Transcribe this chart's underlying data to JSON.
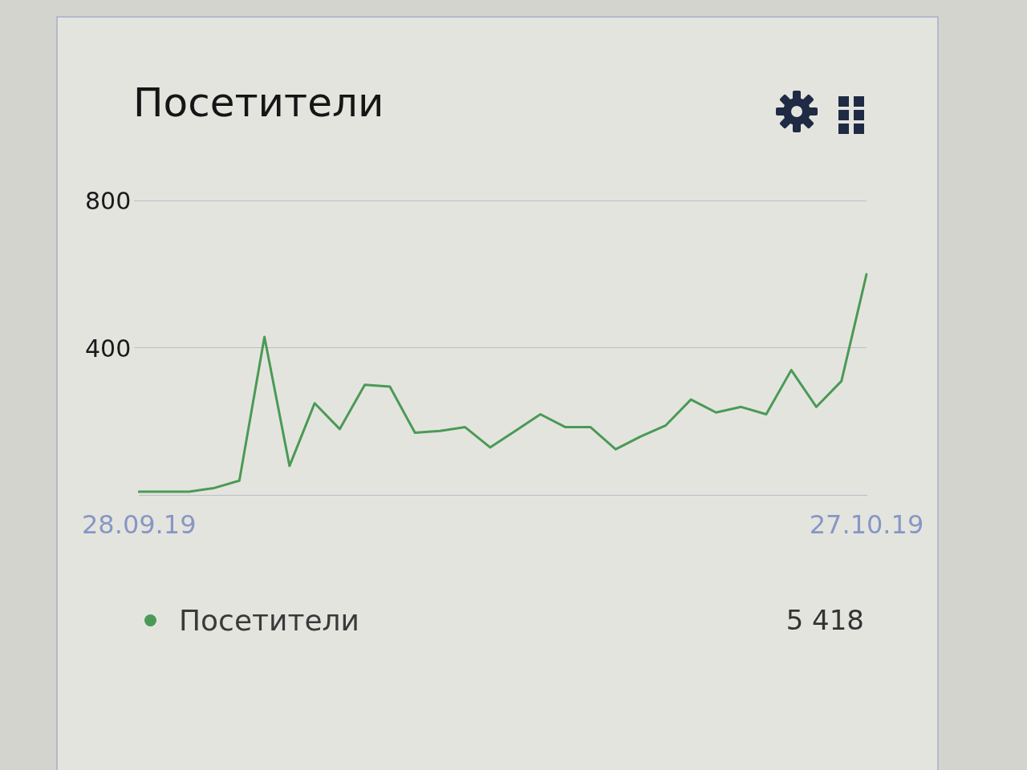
{
  "chart_data": {
    "type": "line",
    "title": "Посетители",
    "categories": [
      "28.09.19",
      null,
      null,
      null,
      null,
      null,
      null,
      null,
      null,
      null,
      null,
      null,
      null,
      null,
      null,
      null,
      null,
      null,
      null,
      null,
      null,
      null,
      null,
      null,
      null,
      null,
      null,
      null,
      null,
      "27.10.19"
    ],
    "series": [
      {
        "name": "Посетители",
        "color": "#4a9a55",
        "values": [
          10,
          10,
          10,
          20,
          40,
          430,
          80,
          250,
          180,
          300,
          295,
          170,
          175,
          185,
          130,
          175,
          220,
          185,
          185,
          125,
          160,
          190,
          260,
          225,
          240,
          220,
          340,
          240,
          310,
          600
        ]
      }
    ],
    "ylim": [
      0,
      800
    ],
    "yticks": [
      400,
      800
    ],
    "grid": "y",
    "legend": "bottom",
    "marker": "none",
    "annotations": [
      "5 418"
    ]
  }
}
